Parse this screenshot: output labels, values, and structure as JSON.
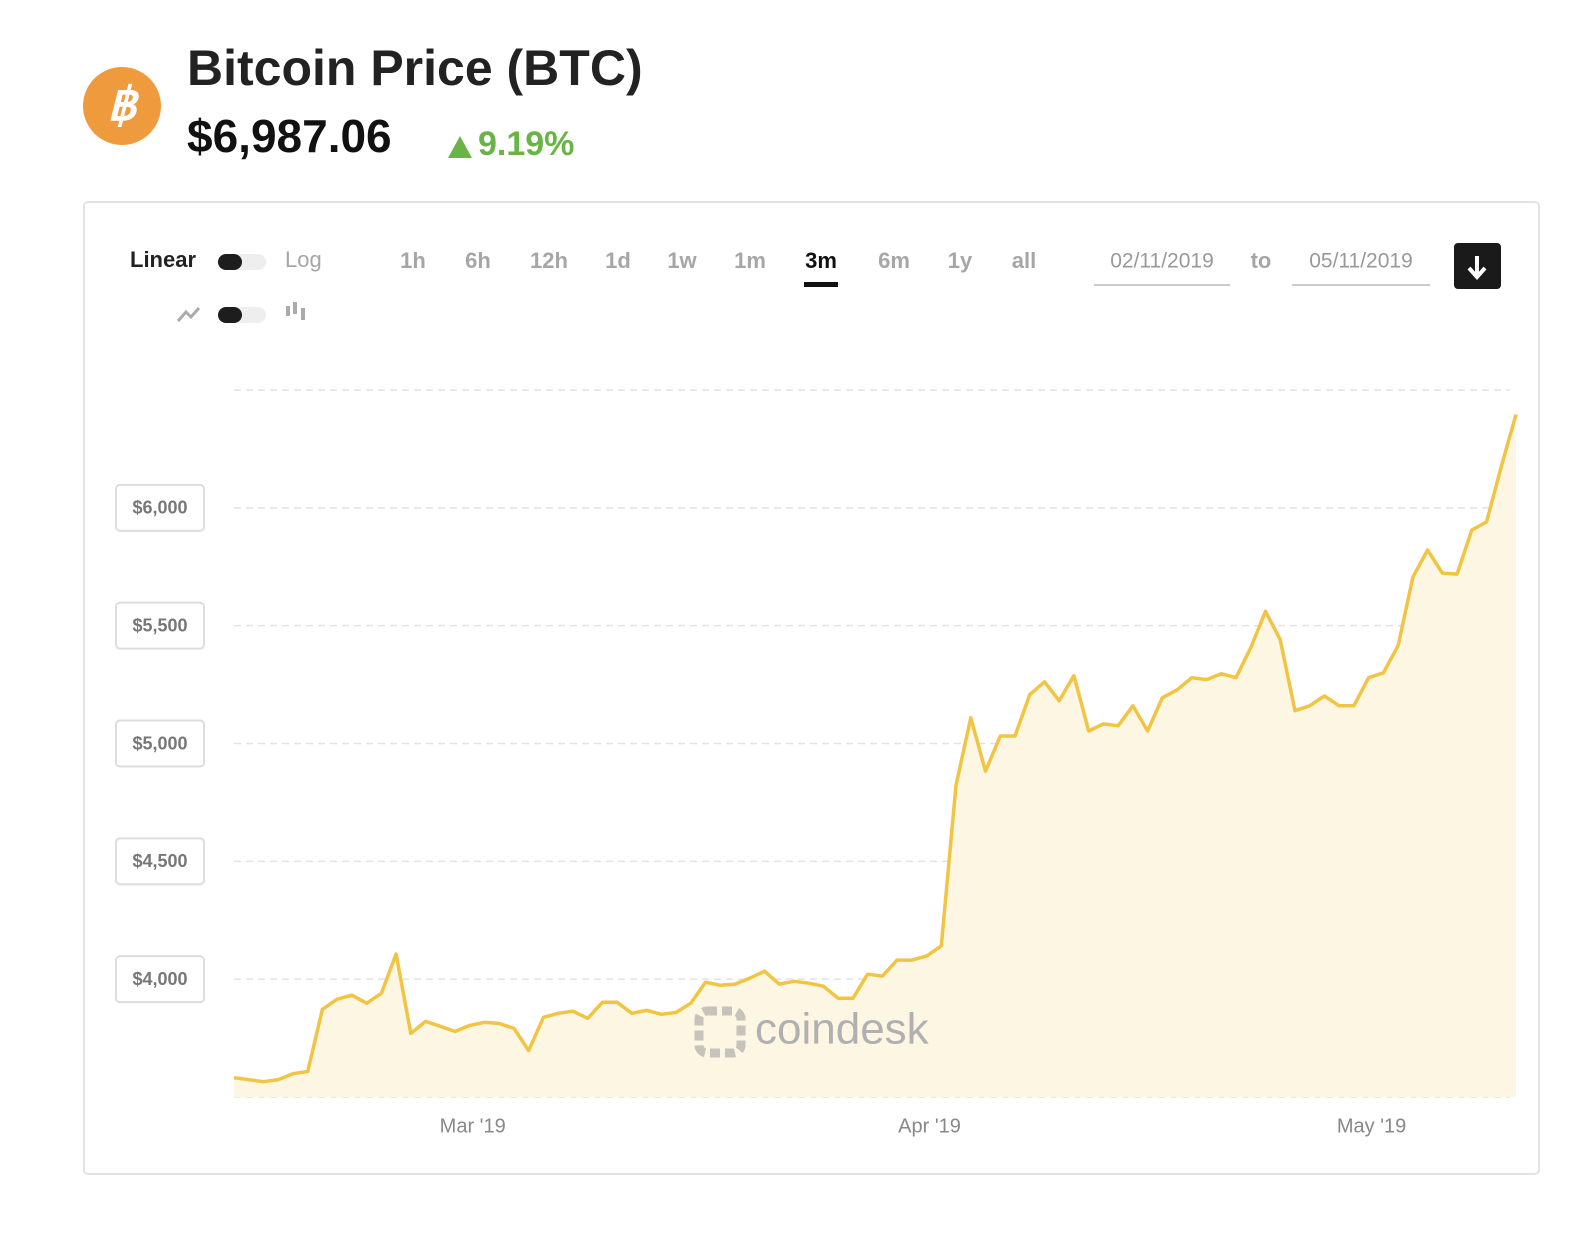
{
  "header": {
    "title": "Bitcoin Price (BTC)",
    "price": "$6,987.06",
    "change": "9.19%"
  },
  "controls": {
    "scale_left": "Linear",
    "scale_right": "Log",
    "ranges": [
      "1h",
      "6h",
      "12h",
      "1d",
      "1w",
      "1m",
      "3m",
      "6m",
      "1y",
      "all"
    ],
    "selected": "3m",
    "date_from": "02/11/2019",
    "date_sep": "to",
    "date_to": "05/11/2019"
  },
  "watermark": "coindesk",
  "chart_data": {
    "type": "line",
    "color": "#f2c443",
    "area_color": "#fdf6e3",
    "grid": true,
    "ylim": [
      3500,
      6500
    ],
    "yticks": [
      {
        "value": 4000,
        "label": "$4,000"
      },
      {
        "value": 4500,
        "label": "$4,500"
      },
      {
        "value": 5000,
        "label": "$5,000"
      },
      {
        "value": 5500,
        "label": "$5,500"
      },
      {
        "value": 6000,
        "label": "$6,000"
      }
    ],
    "xlim": [
      0,
      87
    ],
    "xticks": [
      {
        "value": 16.2,
        "label": "Mar '19"
      },
      {
        "value": 47.2,
        "label": "Apr '19"
      },
      {
        "value": 77.2,
        "label": "May '19"
      }
    ],
    "values": [
      3582,
      3574,
      3565,
      3574,
      3599,
      3608,
      3872,
      3915,
      3932,
      3898,
      3940,
      4107,
      3770,
      3821,
      3800,
      3778,
      3804,
      3817,
      3812,
      3791,
      3697,
      3838,
      3855,
      3864,
      3834,
      3902,
      3902,
      3855,
      3868,
      3851,
      3859,
      3898,
      3987,
      3974,
      3979,
      4004,
      4034,
      3979,
      3991,
      3983,
      3970,
      3919,
      3919,
      4021,
      4013,
      4081,
      4081,
      4098,
      4141,
      4823,
      5109,
      4883,
      5032,
      5032,
      5207,
      5262,
      5181,
      5288,
      5053,
      5083,
      5075,
      5160,
      5053,
      5194,
      5228,
      5279,
      5271,
      5296,
      5279,
      5407,
      5561,
      5441,
      5139,
      5160,
      5202,
      5160,
      5160,
      5279,
      5300,
      5415,
      5706,
      5821,
      5723,
      5719,
      5906,
      5940,
      6175,
      6396
    ]
  }
}
